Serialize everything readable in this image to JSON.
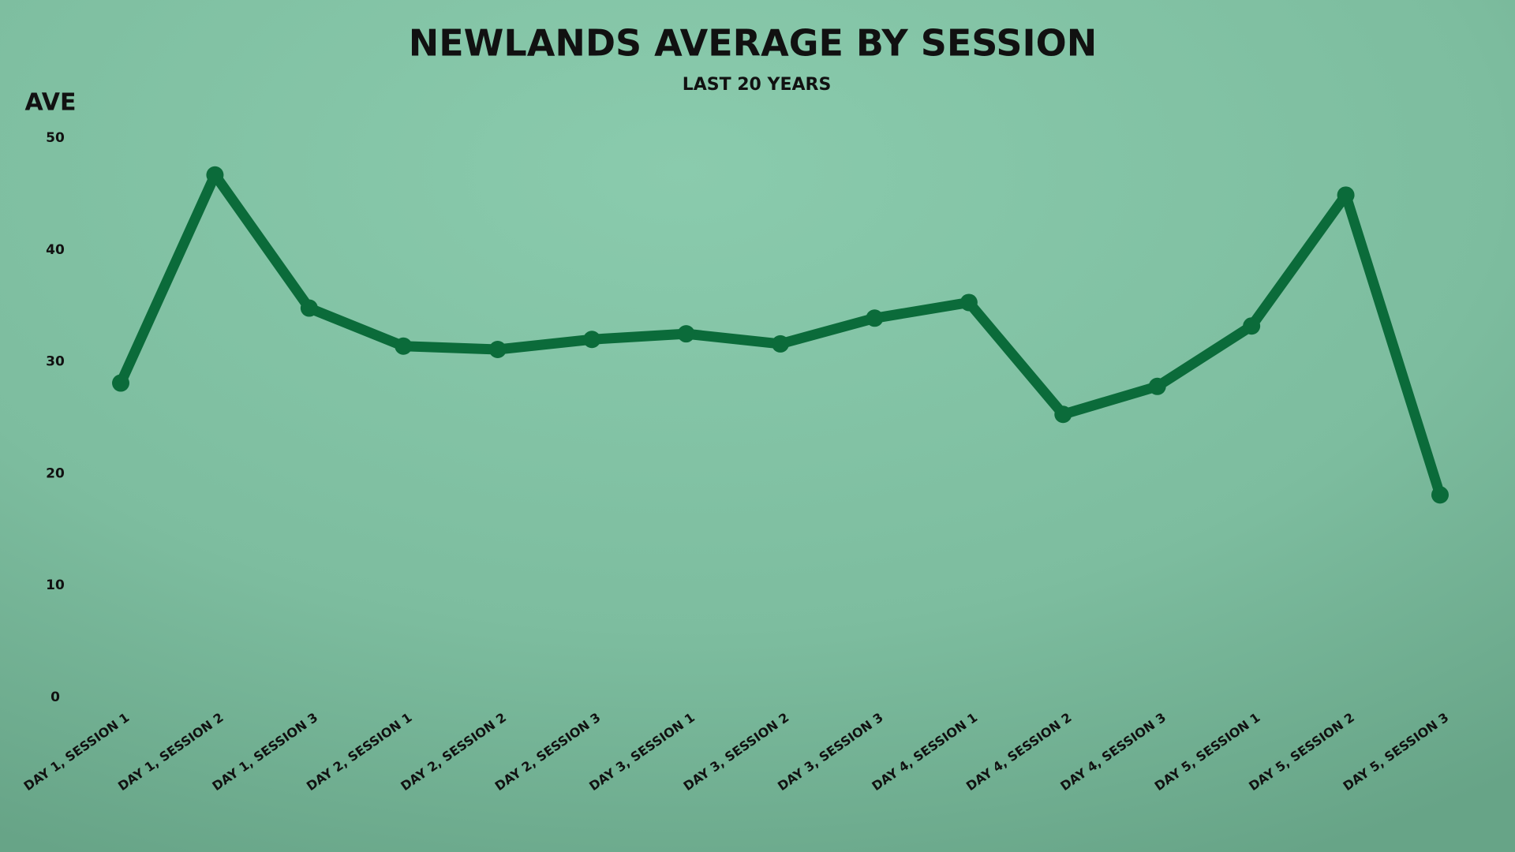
{
  "chart_data": {
    "type": "line",
    "title": "NEWLANDS AVERAGE BY SESSION",
    "subtitle": "LAST 20 YEARS",
    "y_label": "AVE",
    "categories": [
      "DAY 1, SESSION 1",
      "DAY 1, SESSION 2",
      "DAY 1, SESSION 3",
      "DAY 2, SESSION 1",
      "DAY 2, SESSION 2",
      "DAY 2, SESSION 3",
      "DAY 3, SESSION 1",
      "DAY 3, SESSION 2",
      "DAY 3, SESSION 3",
      "DAY 4, SESSION 1",
      "DAY 4, SESSION 2",
      "DAY 4, SESSION 3",
      "DAY 5, SESSION 1",
      "DAY 5, SESSION 2",
      "DAY 5, SESSION 3"
    ],
    "series": [
      {
        "color": "#0b6b3a",
        "values": [
          28.1,
          46.7,
          34.8,
          31.4,
          31.1,
          32.0,
          32.5,
          31.6,
          33.9,
          35.3,
          25.3,
          27.8,
          33.2,
          44.9,
          18.1
        ]
      }
    ],
    "ylim": [
      0,
      50
    ],
    "yticks": [
      0,
      10,
      20,
      30,
      40,
      50
    ],
    "grid": false
  }
}
